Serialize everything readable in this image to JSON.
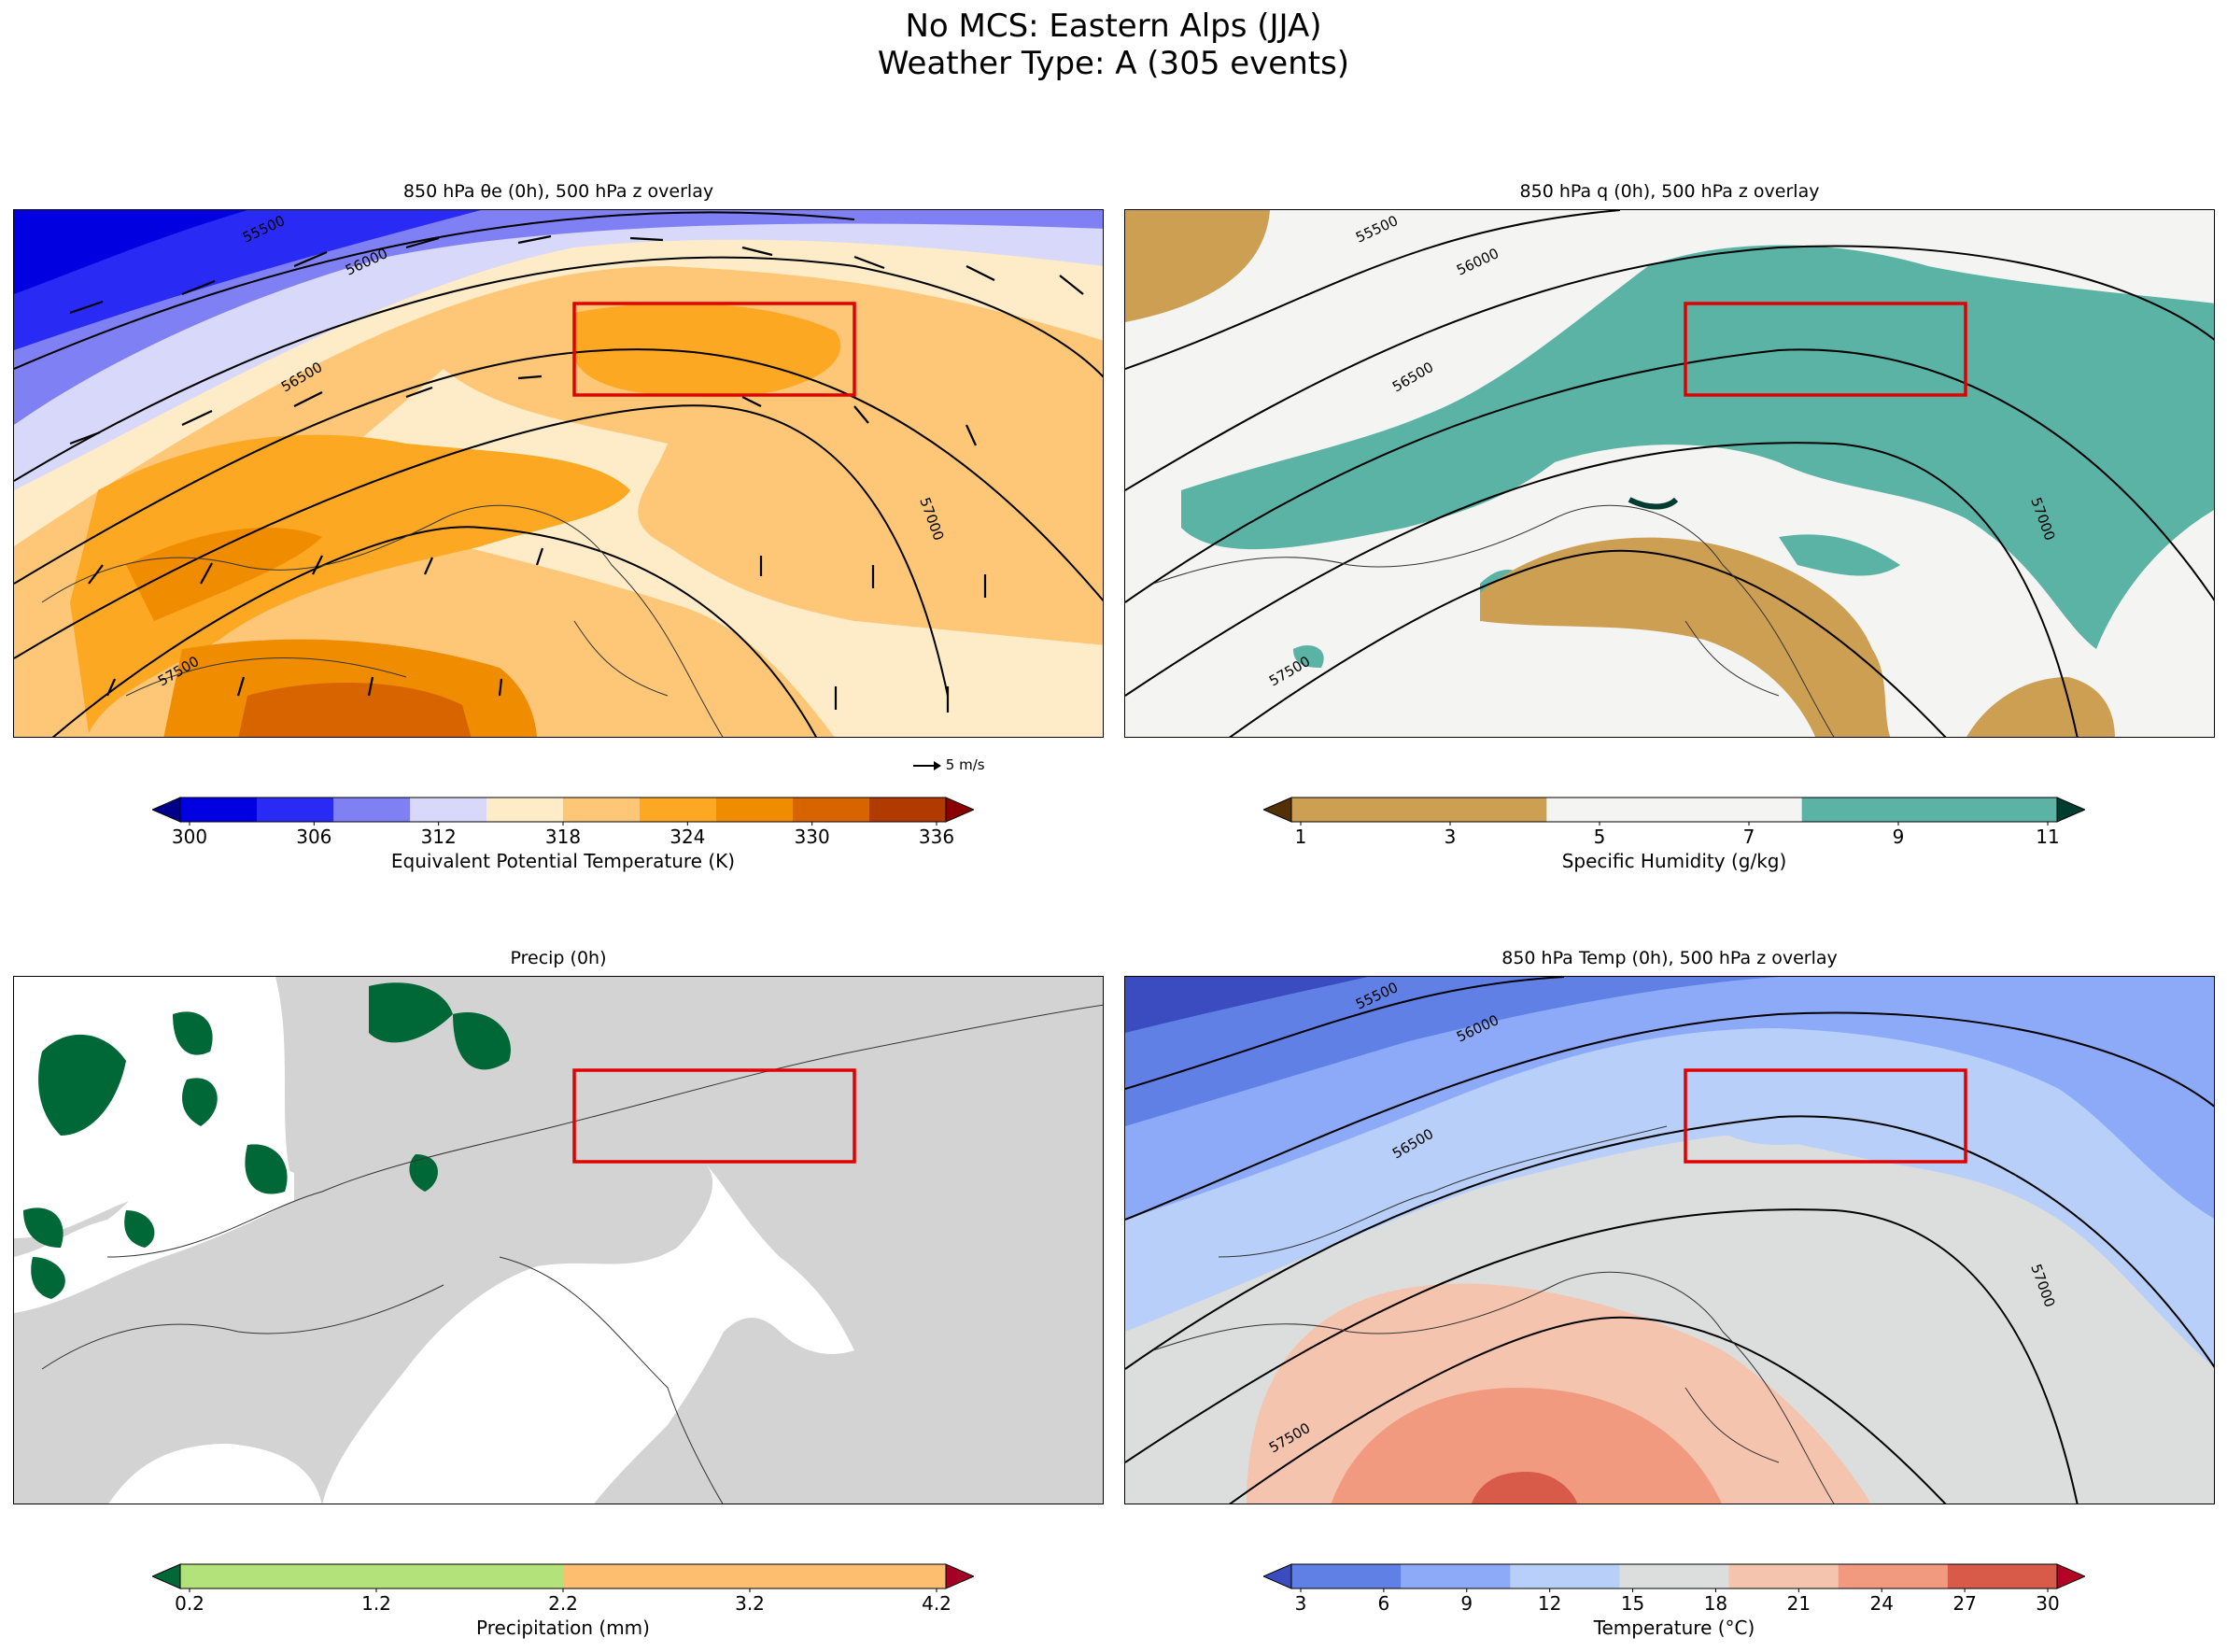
{
  "figure": {
    "title_line1": "No MCS: Eastern Alps (JJA)",
    "title_line2": "Weather Type: A (305 events)"
  },
  "panels": [
    {
      "id": "theta_e",
      "title": "850 hPa θe (0h), 500 hPa z overlay",
      "colorbar_label": "Equivalent Potential Temperature (K)",
      "ticks": [
        "300",
        "306",
        "312",
        "318",
        "324",
        "330",
        "336"
      ],
      "colors": [
        "#00008b",
        "#0000e0",
        "#2a2af5",
        "#8080f5",
        "#d8d8fa",
        "#feecc8",
        "#fdc777",
        "#fca823",
        "#f08c00",
        "#d86400",
        "#b03a00",
        "#8b0000"
      ],
      "contour_labels": [
        "55500",
        "56000",
        "56500",
        "57000",
        "57500"
      ],
      "quiver_key": "5 m/s",
      "region_box": "Eastern Alps"
    },
    {
      "id": "q",
      "title": "850 hPa q (0h), 500 hPa z overlay",
      "colorbar_label": "Specific Humidity (g/kg)",
      "ticks": [
        "1",
        "3",
        "5",
        "7",
        "9",
        "11"
      ],
      "colors": [
        "#543005",
        "#cc9f52",
        "#f4f4f2",
        "#5ab3a5",
        "#003c30"
      ],
      "contour_labels": [
        "55500",
        "56000",
        "56500",
        "57000",
        "57500"
      ]
    },
    {
      "id": "precip",
      "title": "Precip (0h)",
      "colorbar_label": "Precipitation (mm)",
      "ticks": [
        "0.2",
        "1.2",
        "2.2",
        "3.2",
        "4.2"
      ],
      "colors": [
        "#006837",
        "#b4e27a",
        "#fdbf6f",
        "#a50026"
      ],
      "land_color": "#d3d3d3"
    },
    {
      "id": "temp",
      "title": "850 hPa Temp (0h), 500 hPa z overlay",
      "colorbar_label": "Temperature (°C)",
      "ticks": [
        "3",
        "6",
        "9",
        "12",
        "15",
        "18",
        "21",
        "24",
        "27",
        "30"
      ],
      "colors": [
        "#3b4cc0",
        "#6080e6",
        "#8caaf7",
        "#b8cff9",
        "#dcdddd",
        "#f4c4ae",
        "#f29a80",
        "#d85a48",
        "#b40426"
      ],
      "contour_labels": [
        "55500",
        "56000",
        "56500",
        "57000",
        "57500"
      ]
    }
  ]
}
